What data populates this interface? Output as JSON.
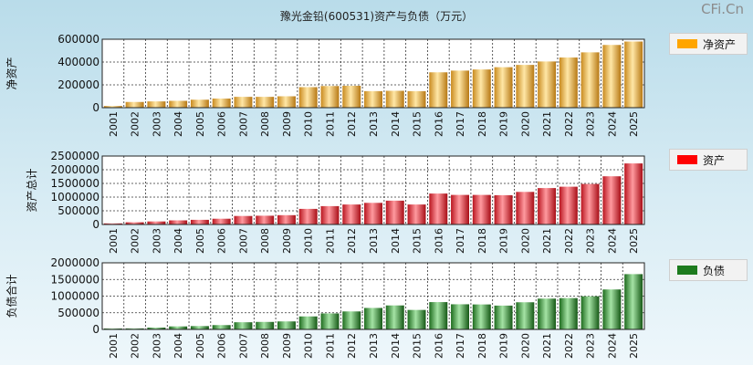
{
  "title": "豫光金铅(600531)资产与负债（万元）",
  "watermark": "CFi.Cn",
  "chart_data": [
    {
      "type": "bar",
      "ylabel": "净资产",
      "legend": "净资产",
      "legend_position": "right",
      "color": "#f3b53b",
      "ylim": [
        0,
        600000
      ],
      "yticks": [
        "600000",
        "400000",
        "200000",
        "0"
      ],
      "categories": [
        "2001",
        "2002",
        "2003",
        "2004",
        "2005",
        "2006",
        "2007",
        "2008",
        "2009",
        "2010",
        "2011",
        "2012",
        "2013",
        "2014",
        "2015",
        "2016",
        "2017",
        "2018",
        "2019",
        "2020",
        "2021",
        "2022",
        "2023",
        "2024",
        "2025"
      ],
      "values": [
        15000,
        50000,
        55000,
        60000,
        70000,
        80000,
        95000,
        95000,
        100000,
        180000,
        190000,
        192000,
        145000,
        148000,
        145000,
        310000,
        325000,
        335000,
        355000,
        375000,
        405000,
        440000,
        485000,
        550000,
        580000
      ]
    },
    {
      "type": "bar",
      "ylabel": "资产总计",
      "legend": "资产",
      "legend_position": "right",
      "color": "#e8313a",
      "ylim": [
        0,
        2500000
      ],
      "yticks": [
        "2500000",
        "2000000",
        "1500000",
        "1000000",
        "500000",
        "0"
      ],
      "categories": [
        "2001",
        "2002",
        "2003",
        "2004",
        "2005",
        "2006",
        "2007",
        "2008",
        "2009",
        "2010",
        "2011",
        "2012",
        "2013",
        "2014",
        "2015",
        "2016",
        "2017",
        "2018",
        "2019",
        "2020",
        "2021",
        "2022",
        "2023",
        "2024",
        "2025"
      ],
      "values": [
        40000,
        80000,
        110000,
        150000,
        170000,
        210000,
        310000,
        320000,
        340000,
        570000,
        670000,
        730000,
        790000,
        870000,
        730000,
        1130000,
        1080000,
        1080000,
        1070000,
        1190000,
        1330000,
        1380000,
        1480000,
        1760000,
        2230000
      ]
    },
    {
      "type": "bar",
      "ylabel": "负债合计",
      "legend": "负债",
      "legend_position": "right",
      "color": "#2e8c2e",
      "ylim": [
        0,
        2000000
      ],
      "yticks": [
        "2000000",
        "1500000",
        "1000000",
        "500000",
        "0"
      ],
      "categories": [
        "2001",
        "2002",
        "2003",
        "2004",
        "2005",
        "2006",
        "2007",
        "2008",
        "2009",
        "2010",
        "2011",
        "2012",
        "2013",
        "2014",
        "2015",
        "2016",
        "2017",
        "2018",
        "2019",
        "2020",
        "2021",
        "2022",
        "2023",
        "2024",
        "2025"
      ],
      "values": [
        25000,
        30000,
        55000,
        90000,
        100000,
        130000,
        215000,
        225000,
        240000,
        390000,
        480000,
        540000,
        645000,
        720000,
        585000,
        820000,
        755000,
        750000,
        715000,
        815000,
        925000,
        940000,
        995000,
        1200000,
        1660000
      ]
    }
  ]
}
